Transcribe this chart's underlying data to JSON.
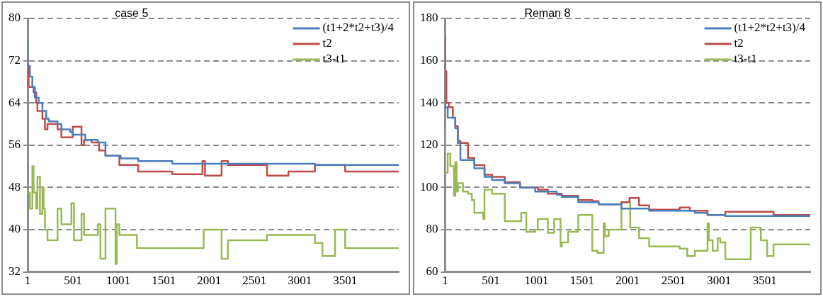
{
  "chart_data": [
    {
      "type": "step",
      "title": "case 5",
      "xlim": [
        1,
        4092
      ],
      "xticks": [
        1,
        501,
        1001,
        1501,
        2001,
        2501,
        3001,
        3501
      ],
      "ylim": [
        32,
        80
      ],
      "yticks": [
        32,
        40,
        48,
        56,
        64,
        72,
        80
      ],
      "grid": "y",
      "legend": "top right",
      "marker": "none",
      "line_style": "solid",
      "series": [
        {
          "name": "(t1+2*t2+t3)/4",
          "color": "#4a7ebb",
          "x": [
            1,
            26,
            53,
            81,
            123,
            164,
            206,
            234,
            331,
            373,
            470,
            498,
            637,
            775,
            859,
            1026,
            1220,
            1595,
            3168,
            3918,
            4092
          ],
          "values": [
            76,
            71,
            69,
            67,
            65,
            64,
            62.5,
            61,
            60.5,
            60,
            59,
            58.5,
            58,
            57,
            56.5,
            54,
            53.5,
            53,
            52.5,
            52.25,
            52.25
          ]
        },
        {
          "name": "t2",
          "color": "#be4b48",
          "x": [
            1,
            12,
            67,
            95,
            109,
            164,
            192,
            220,
            331,
            373,
            498,
            595,
            623,
            706,
            789,
            859,
            1012,
            1220,
            1595,
            1928,
            1956,
            2139,
            2209,
            2640,
            2876,
            3168,
            3501,
            3918,
            4092
          ],
          "values": [
            74,
            71,
            67,
            66,
            64,
            62.5,
            61,
            59,
            60,
            59,
            57.5,
            59.5,
            56,
            57,
            56.5,
            55,
            54,
            52.25,
            51,
            50.5,
            53,
            50.25,
            53,
            52.25,
            50.25,
            51,
            52.25,
            51,
            51
          ]
        },
        {
          "name": "t3-t1",
          "color": "#98b954",
          "x": [
            1,
            26,
            53,
            67,
            95,
            109,
            137,
            164,
            178,
            192,
            220,
            331,
            373,
            484,
            512,
            595,
            623,
            775,
            803,
            859,
            970,
            984,
            1012,
            1206,
            1942,
            2139,
            2209,
            2640,
            3168,
            3251,
            3390,
            3501,
            3918,
            4092
          ],
          "values": [
            48,
            47,
            44,
            52,
            47,
            44,
            50,
            43,
            48,
            44,
            40,
            38,
            44,
            41,
            45,
            38,
            43,
            39,
            41,
            34.5,
            44,
            33.5,
            41,
            39,
            36.5,
            40,
            34.5,
            38,
            39,
            37.5,
            35,
            40,
            36.5,
            36.5
          ]
        }
      ]
    },
    {
      "type": "step",
      "title": "Reman 8",
      "xlim": [
        1,
        4000
      ],
      "xticks": [
        1,
        501,
        1001,
        1501,
        2001,
        2501,
        3001,
        3501
      ],
      "ylim": [
        60,
        180
      ],
      "yticks": [
        60,
        80,
        100,
        120,
        140,
        160,
        180
      ],
      "grid": "y",
      "legend": "top right",
      "marker": "none",
      "line_style": "solid",
      "series": [
        {
          "name": "(t1+2*t2+t3)/4",
          "color": "#4a7ebb",
          "x": [
            1,
            29,
            112,
            140,
            168,
            321,
            432,
            515,
            654,
            821,
            987,
            1223,
            1279,
            1459,
            1682,
            1932,
            2236,
            2736,
            2875,
            3070,
            4000
          ],
          "values": [
            155,
            138,
            133,
            128,
            121,
            113,
            109,
            105,
            103.5,
            102,
            100,
            98,
            96.5,
            95.5,
            93,
            92,
            90,
            89,
            88,
            87,
            86.5
          ]
        },
        {
          "name": "t2",
          "color": "#be4b48",
          "x": [
            1,
            15,
            43,
            85,
            112,
            140,
            168,
            251,
            321,
            432,
            515,
            654,
            821,
            1015,
            1126,
            1279,
            1459,
            1612,
            1682,
            1932,
            2020,
            2125,
            2236,
            2570,
            2681,
            2875,
            3070,
            3598,
            3903,
            4000
          ],
          "values": [
            172,
            155,
            140,
            138,
            133,
            129,
            122,
            121,
            114,
            110.5,
            106,
            105,
            102.5,
            100,
            99,
            97,
            96,
            94,
            93.5,
            92,
            93,
            95,
            91.5,
            89.5,
            90.5,
            89,
            87,
            88.5,
            87,
            87
          ]
        },
        {
          "name": "t3-t1",
          "color": "#98b954",
          "x": [
            1,
            29,
            57,
            98,
            112,
            126,
            140,
            196,
            251,
            293,
            321,
            418,
            432,
            515,
            654,
            835,
            890,
            987,
            1015,
            1126,
            1195,
            1265,
            1279,
            1348,
            1459,
            1612,
            1668,
            1737,
            1751,
            1793,
            1932,
            2028,
            2125,
            2236,
            2570,
            2653,
            2736,
            2875,
            2889,
            2931,
            2986,
            3014,
            3070,
            3348,
            3459,
            3528,
            3598,
            3903,
            4000
          ],
          "values": [
            128,
            107,
            116,
            110,
            96,
            112,
            98,
            102,
            98,
            97,
            94,
            88,
            85,
            99,
            97,
            84,
            88,
            79,
            80,
            85,
            78.5,
            85,
            72,
            74,
            79,
            87,
            70,
            69,
            83,
            77,
            80,
            93,
            81,
            76,
            72,
            71,
            67.5,
            70,
            83,
            75,
            70,
            76,
            74,
            66,
            81,
            75,
            67.5,
            73,
            73
          ]
        }
      ]
    }
  ]
}
